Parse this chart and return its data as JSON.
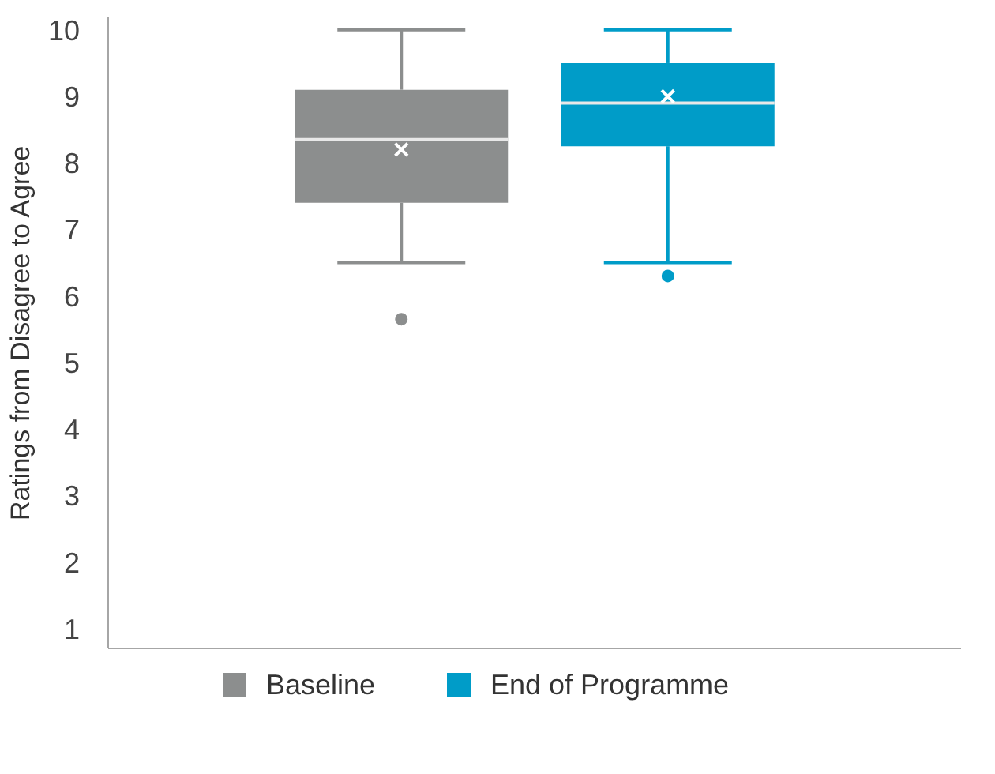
{
  "chart_data": {
    "type": "box",
    "ylabel": "Ratings from Disagree to Agree",
    "categories": [
      null,
      null
    ],
    "series": [
      {
        "name": "Baseline",
        "color": "#8c8e8e",
        "boxes": [
          {
            "low": 6.5,
            "q1": 7.4,
            "median": 8.35,
            "q3": 9.1,
            "high": 10,
            "mean": 8.2,
            "outliers": [
              5.65
            ]
          },
          null
        ]
      },
      {
        "name": "End of Programme",
        "color": "#009cc8",
        "boxes": [
          null,
          {
            "low": 6.5,
            "q1": 8.25,
            "median": 8.9,
            "q3": 9.5,
            "high": 10,
            "mean": 9.0,
            "outliers": [
              6.3
            ]
          }
        ]
      }
    ],
    "ylim": [
      0.7,
      10.2
    ],
    "yticks": [
      1,
      2,
      3,
      4,
      5,
      6,
      7,
      8,
      9,
      10
    ],
    "grid": false,
    "legend": "bottom",
    "tick_labels": "y"
  }
}
